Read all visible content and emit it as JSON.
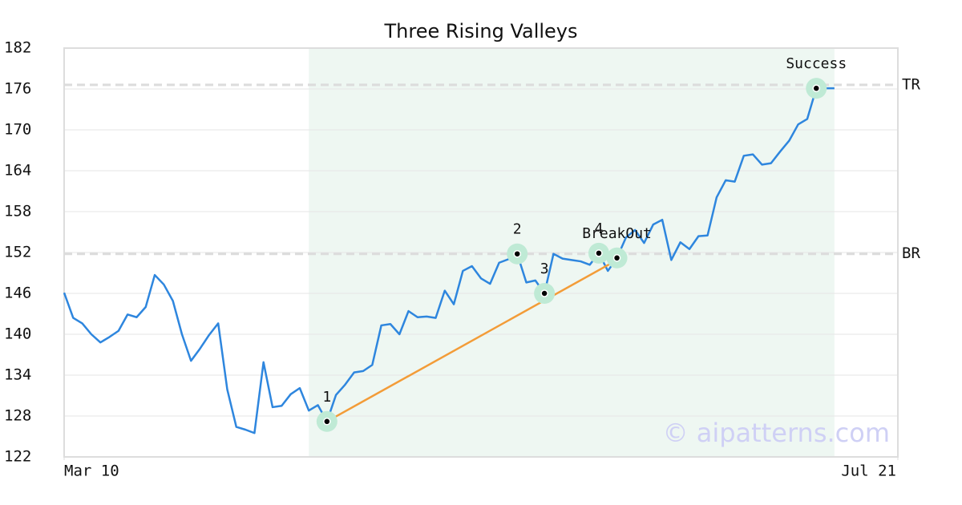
{
  "chart_data": {
    "type": "line",
    "title": "Three Rising Valleys",
    "x": [
      0,
      1,
      2,
      3,
      4,
      5,
      6,
      7,
      8,
      9,
      10,
      11,
      12,
      13,
      14,
      15,
      16,
      17,
      18,
      19,
      20,
      21,
      22,
      23,
      24,
      25,
      26,
      27,
      28,
      29,
      30,
      31,
      32,
      33,
      34,
      35,
      36,
      37,
      38,
      39,
      40,
      41,
      42,
      43,
      44,
      45,
      46,
      47,
      48,
      49,
      50,
      51,
      52,
      53,
      54,
      55,
      56,
      57,
      58,
      59,
      60,
      61,
      62,
      63,
      64,
      65,
      66,
      67,
      68,
      69,
      70,
      71,
      72,
      73,
      74,
      75,
      76,
      77,
      78,
      79,
      80,
      81,
      82,
      83,
      84,
      85
    ],
    "series": [
      {
        "color": "#2e86de",
        "values": [
          146.1,
          142.4,
          141.6,
          140.0,
          138.8,
          139.6,
          140.5,
          142.9,
          142.5,
          144.0,
          148.7,
          147.3,
          144.9,
          140.0,
          136.1,
          137.9,
          139.9,
          141.6,
          131.9,
          126.4,
          126.0,
          125.5,
          135.9,
          129.3,
          129.5,
          131.2,
          132.1,
          128.8,
          129.6,
          127.2,
          131.1,
          132.6,
          134.4,
          134.6,
          135.5,
          141.3,
          141.5,
          140.0,
          143.4,
          142.5,
          142.6,
          142.4,
          146.4,
          144.4,
          149.3,
          150.0,
          148.2,
          147.4,
          150.5,
          151.0,
          151.8,
          147.6,
          147.9,
          146.0,
          151.8,
          151.1,
          150.9,
          150.7,
          150.2,
          151.9,
          149.3,
          151.2,
          154.2,
          155.3,
          153.4,
          156.1,
          156.8,
          150.9,
          153.5,
          152.5,
          154.4,
          154.5,
          160.1,
          162.6,
          162.4,
          166.2,
          166.4,
          164.9,
          165.1,
          166.8,
          168.4,
          170.8,
          171.6,
          176.1,
          176.1,
          176.1
        ]
      }
    ],
    "xlim": [
      0,
      92
    ],
    "xticks": [
      {
        "value": 0,
        "label": "Mar 10"
      },
      {
        "value": 92,
        "label": "Jul 21"
      }
    ],
    "ylim": [
      122,
      182
    ],
    "yticks": [
      122,
      128,
      134,
      140,
      146,
      152,
      158,
      164,
      170,
      176,
      182
    ],
    "grid": true,
    "highlight_range": [
      27,
      85
    ],
    "levels": [
      {
        "label": "TR",
        "value": 176.6
      },
      {
        "label": "BR",
        "value": 151.8
      }
    ],
    "trendline": {
      "color": "#f39c38",
      "x": [
        29,
        60.6
      ],
      "y": [
        127.2,
        150.6
      ]
    },
    "points": [
      {
        "label": "1",
        "index": 29
      },
      {
        "label": "2",
        "index": 50
      },
      {
        "label": "3",
        "index": 53
      },
      {
        "label": "4",
        "index": 59
      },
      {
        "label": "BreakOut",
        "index": 61
      },
      {
        "label": "Success",
        "index": 83
      }
    ],
    "watermark": "© aipatterns.com"
  }
}
